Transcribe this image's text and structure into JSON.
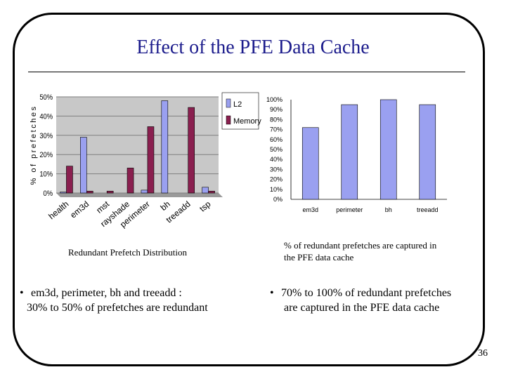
{
  "title": "Effect of the PFE Data Cache",
  "left_caption": "Redundant Prefetch Distribution",
  "right_caption": [
    "% of redundant prefetches are captured in",
    "the PFE data cache"
  ],
  "left_bullet": [
    "em3d, perimeter, bh and treeadd :",
    "30% to 50% of  prefetches are redundant"
  ],
  "right_bullet": [
    "70% to 100% of redundant prefetches",
    "are captured in the PFE data cache"
  ],
  "bullet_char": "•",
  "page_number": "36",
  "colors": {
    "title": "#1c1c8c",
    "l2": "#9aa0f0",
    "memory": "#8a1f4f",
    "bar_right": "#9aa0f0"
  },
  "chart_data": [
    {
      "type": "bar",
      "ylabel": "% of prefetches",
      "categories": [
        "health",
        "em3d",
        "mst",
        "rayshade",
        "perimeter",
        "bh",
        "treeadd",
        "tsp"
      ],
      "ylim": [
        0,
        50
      ],
      "ytick_labels": [
        "0%",
        "10%",
        "20%",
        "30%",
        "40%",
        "50%"
      ],
      "legend_position": "top-right",
      "series": [
        {
          "name": "L2",
          "values": [
            0.5,
            29,
            0,
            0,
            1.5,
            48,
            0,
            3
          ]
        },
        {
          "name": "Memory",
          "values": [
            14,
            1,
            1,
            13,
            34.5,
            0,
            44.5,
            1
          ]
        }
      ]
    },
    {
      "type": "bar",
      "categories": [
        "em3d",
        "perimeter",
        "bh",
        "treeadd"
      ],
      "values": [
        72,
        95,
        100,
        95
      ],
      "ylim": [
        0,
        100
      ],
      "ytick_labels": [
        "0%",
        "10%",
        "20%",
        "30%",
        "40%",
        "50%",
        "60%",
        "70%",
        "80%",
        "90%",
        "100%"
      ]
    }
  ]
}
